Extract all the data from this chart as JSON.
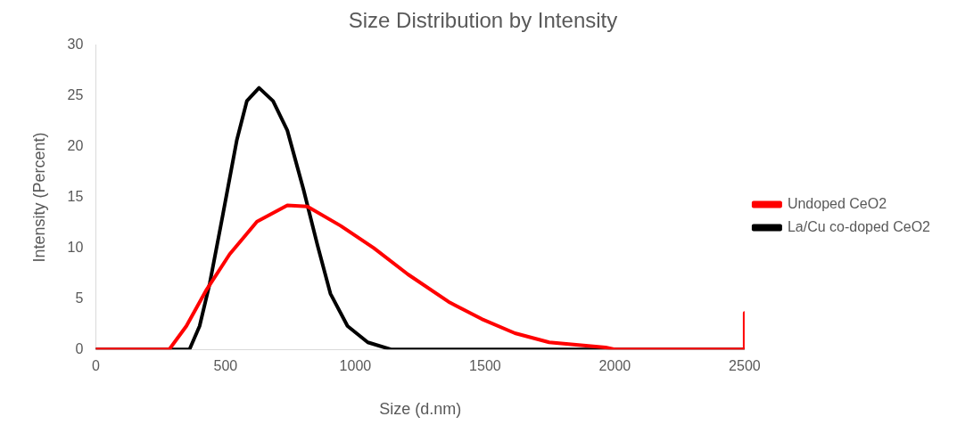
{
  "chart_data": {
    "type": "line",
    "title": "Size Distribution by Intensity",
    "xlabel": "Size (d.nm)",
    "ylabel": "Intensity (Percent)",
    "xlim": [
      0,
      2500
    ],
    "xticks": [
      0,
      500,
      1000,
      1500,
      2000,
      2500
    ],
    "ylim": [
      0,
      30
    ],
    "yticks": [
      0,
      5,
      10,
      15,
      20,
      25,
      30
    ],
    "grid": false,
    "legend": "right",
    "marker": "none",
    "line_style": "solid",
    "series": [
      {
        "name": "Undoped CeO2",
        "color": "#ff0000",
        "x": [
          0,
          283,
          349,
          427,
          516,
          621,
          738,
          815,
          943,
          1071,
          1203,
          1359,
          1487,
          1615,
          1747,
          1964,
          2000,
          2490,
          2500,
          2500
        ],
        "values": [
          0,
          0,
          2.3,
          5.9,
          9.4,
          12.6,
          14.2,
          14.1,
          12.2,
          10.0,
          7.4,
          4.7,
          3.0,
          1.6,
          0.7,
          0.2,
          0,
          0,
          0,
          3.6
        ]
      },
      {
        "name": "La/Cu co-doped CeO2",
        "color": "#000000",
        "x": [
          0,
          361,
          400,
          439,
          489,
          543,
          582,
          629,
          683,
          738,
          800,
          854,
          904,
          970,
          1048,
          1137,
          2500
        ],
        "values": [
          0,
          0,
          2.3,
          6.5,
          13.2,
          20.6,
          24.5,
          25.8,
          24.5,
          21.6,
          15.8,
          10.3,
          5.5,
          2.3,
          0.7,
          0,
          0
        ]
      }
    ]
  }
}
